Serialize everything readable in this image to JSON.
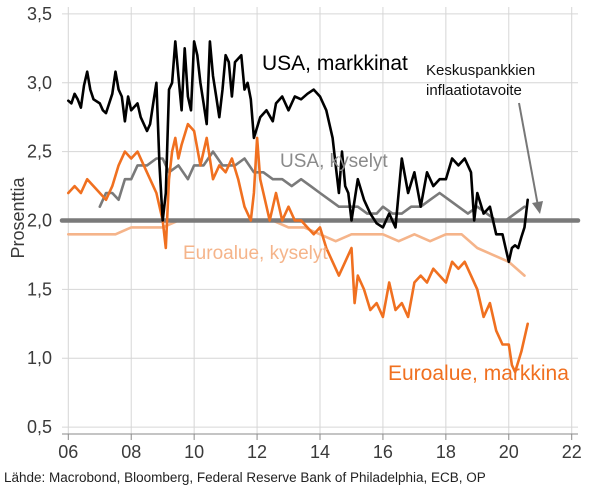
{
  "chart_data": {
    "type": "line",
    "ylabel": "Prosenttia",
    "xlim": [
      2005.8,
      2022.2
    ],
    "ylim": [
      0.45,
      3.55
    ],
    "yticks": [
      0.5,
      1.0,
      1.5,
      2.0,
      2.5,
      3.0,
      3.5
    ],
    "ytick_labels": [
      "0,5",
      "1,0",
      "1,5",
      "2,0",
      "2,5",
      "3,0",
      "3,5"
    ],
    "xticks": [
      2006,
      2008,
      2010,
      2012,
      2014,
      2016,
      2018,
      2020,
      2022
    ],
    "xtick_labels": [
      "06",
      "08",
      "10",
      "12",
      "14",
      "16",
      "18",
      "20",
      "22"
    ],
    "grid": true,
    "colors": {
      "usa_markets": "#000000",
      "usa_surveys": "#7a7a7a",
      "euro_markets": "#f07020",
      "euro_surveys": "#f5b48a",
      "target": "#7a7a7a"
    },
    "series": [
      {
        "name": "USA, markkinat",
        "x": [
          2006.0,
          2006.1,
          2006.2,
          2006.3,
          2006.4,
          2006.5,
          2006.6,
          2006.7,
          2006.8,
          2007.0,
          2007.1,
          2007.2,
          2007.4,
          2007.5,
          2007.6,
          2007.7,
          2007.8,
          2007.9,
          2008.0,
          2008.2,
          2008.3,
          2008.5,
          2008.6,
          2008.7,
          2008.8,
          2008.9,
          2009.0,
          2009.1,
          2009.2,
          2009.3,
          2009.4,
          2009.5,
          2009.6,
          2009.7,
          2009.8,
          2009.9,
          2010.0,
          2010.1,
          2010.2,
          2010.3,
          2010.4,
          2010.5,
          2010.6,
          2010.7,
          2010.8,
          2010.9,
          2011.0,
          2011.1,
          2011.2,
          2011.3,
          2011.5,
          2011.6,
          2011.7,
          2011.8,
          2011.9,
          2012.1,
          2012.3,
          2012.5,
          2012.6,
          2012.8,
          2013.0,
          2013.2,
          2013.4,
          2013.6,
          2013.8,
          2014.0,
          2014.2,
          2014.4,
          2014.5,
          2014.6,
          2014.7,
          2014.8,
          2014.9,
          2015.0,
          2015.2,
          2015.4,
          2015.6,
          2015.8,
          2016.0,
          2016.2,
          2016.4,
          2016.6,
          2016.8,
          2017.0,
          2017.2,
          2017.4,
          2017.6,
          2017.8,
          2018.0,
          2018.2,
          2018.4,
          2018.6,
          2018.8,
          2018.9,
          2019.0,
          2019.2,
          2019.4,
          2019.6,
          2019.8,
          2019.9,
          2020.0,
          2020.1,
          2020.2,
          2020.3,
          2020.4,
          2020.5,
          2020.6
        ],
        "values": [
          2.87,
          2.85,
          2.92,
          2.88,
          2.82,
          2.98,
          3.08,
          2.95,
          2.88,
          2.85,
          2.8,
          2.78,
          2.92,
          3.08,
          2.95,
          2.9,
          2.72,
          2.9,
          2.8,
          2.85,
          2.75,
          2.65,
          2.7,
          2.85,
          3.0,
          2.4,
          2.0,
          2.2,
          2.95,
          3.0,
          3.3,
          3.05,
          2.8,
          3.25,
          2.9,
          2.8,
          3.3,
          3.2,
          3.0,
          2.85,
          2.7,
          3.3,
          3.05,
          2.9,
          2.75,
          2.95,
          3.2,
          3.15,
          2.9,
          3.15,
          3.2,
          2.95,
          3.0,
          2.88,
          2.6,
          2.75,
          2.8,
          2.72,
          2.85,
          2.9,
          2.8,
          2.9,
          2.88,
          2.92,
          2.95,
          2.9,
          2.8,
          2.6,
          2.4,
          2.2,
          2.5,
          2.25,
          2.2,
          2.0,
          2.3,
          2.15,
          2.05,
          1.98,
          1.95,
          2.05,
          1.95,
          2.45,
          2.2,
          2.35,
          2.1,
          2.35,
          2.25,
          2.3,
          2.3,
          2.45,
          2.4,
          2.45,
          2.35,
          2.0,
          2.2,
          2.05,
          2.1,
          1.9,
          1.9,
          1.8,
          1.7,
          1.8,
          1.82,
          1.8,
          1.88,
          1.95,
          2.15
        ]
      },
      {
        "name": "USA, kyselyt",
        "x": [
          2007.0,
          2007.2,
          2007.4,
          2007.6,
          2007.8,
          2008.0,
          2008.2,
          2008.5,
          2008.8,
          2009.0,
          2009.2,
          2009.5,
          2009.8,
          2010.0,
          2010.3,
          2010.6,
          2010.9,
          2011.0,
          2011.3,
          2011.6,
          2011.9,
          2012.2,
          2012.5,
          2012.8,
          2013.1,
          2013.4,
          2013.7,
          2014.0,
          2014.3,
          2014.6,
          2014.9,
          2015.2,
          2015.5,
          2015.8,
          2016.0,
          2016.3,
          2016.6,
          2016.9,
          2017.2,
          2017.5,
          2017.8,
          2018.1,
          2018.4,
          2018.7,
          2019.0,
          2019.3,
          2019.6,
          2019.9,
          2020.2,
          2020.5
        ],
        "values": [
          2.1,
          2.2,
          2.2,
          2.15,
          2.3,
          2.3,
          2.4,
          2.4,
          2.45,
          2.45,
          2.35,
          2.4,
          2.3,
          2.4,
          2.4,
          2.5,
          2.4,
          2.4,
          2.4,
          2.45,
          2.35,
          2.35,
          2.3,
          2.3,
          2.25,
          2.3,
          2.25,
          2.2,
          2.15,
          2.1,
          2.1,
          2.1,
          2.05,
          2.05,
          2.1,
          2.05,
          2.05,
          2.1,
          2.1,
          2.15,
          2.2,
          2.15,
          2.1,
          2.05,
          2.1,
          2.05,
          2.0,
          2.0,
          2.05,
          2.1
        ]
      },
      {
        "name": "Euroalue, markkina",
        "x": [
          2006.0,
          2006.2,
          2006.4,
          2006.6,
          2006.8,
          2007.0,
          2007.2,
          2007.4,
          2007.6,
          2007.8,
          2008.0,
          2008.2,
          2008.4,
          2008.6,
          2008.8,
          2009.0,
          2009.1,
          2009.2,
          2009.3,
          2009.4,
          2009.5,
          2009.6,
          2009.8,
          2010.0,
          2010.2,
          2010.4,
          2010.6,
          2010.8,
          2011.0,
          2011.2,
          2011.4,
          2011.6,
          2011.8,
          2011.9,
          2012.0,
          2012.1,
          2012.2,
          2012.4,
          2012.6,
          2012.8,
          2013.0,
          2013.2,
          2013.4,
          2013.6,
          2013.8,
          2014.0,
          2014.2,
          2014.4,
          2014.6,
          2014.8,
          2015.0,
          2015.1,
          2015.2,
          2015.4,
          2015.6,
          2015.8,
          2016.0,
          2016.2,
          2016.4,
          2016.6,
          2016.8,
          2017.0,
          2017.2,
          2017.4,
          2017.6,
          2017.8,
          2018.0,
          2018.2,
          2018.4,
          2018.6,
          2018.8,
          2019.0,
          2019.2,
          2019.4,
          2019.6,
          2019.8,
          2020.0,
          2020.1,
          2020.2,
          2020.4,
          2020.6
        ],
        "values": [
          2.2,
          2.25,
          2.2,
          2.3,
          2.25,
          2.2,
          2.15,
          2.25,
          2.4,
          2.5,
          2.45,
          2.5,
          2.4,
          2.3,
          2.2,
          2.0,
          1.8,
          2.3,
          2.5,
          2.6,
          2.45,
          2.55,
          2.7,
          2.65,
          2.4,
          2.6,
          2.3,
          2.4,
          2.35,
          2.45,
          2.3,
          2.1,
          2.0,
          2.2,
          2.6,
          2.3,
          2.2,
          2.0,
          2.2,
          2.0,
          2.1,
          2.0,
          2.0,
          1.95,
          1.9,
          1.95,
          1.8,
          1.7,
          1.6,
          1.7,
          1.8,
          1.4,
          1.6,
          1.5,
          1.35,
          1.4,
          1.3,
          1.55,
          1.35,
          1.4,
          1.3,
          1.55,
          1.6,
          1.55,
          1.65,
          1.6,
          1.55,
          1.7,
          1.65,
          1.7,
          1.6,
          1.5,
          1.3,
          1.4,
          1.2,
          1.1,
          1.1,
          0.95,
          0.9,
          1.05,
          1.25
        ]
      },
      {
        "name": "Euroalue, kyselyt",
        "x": [
          2006.0,
          2006.5,
          2007.0,
          2007.5,
          2008.0,
          2008.5,
          2009.0,
          2009.5,
          2010.0,
          2010.5,
          2011.0,
          2011.5,
          2012.0,
          2012.5,
          2013.0,
          2013.5,
          2014.0,
          2014.5,
          2015.0,
          2015.5,
          2016.0,
          2016.5,
          2017.0,
          2017.5,
          2018.0,
          2018.5,
          2019.0,
          2019.5,
          2020.0,
          2020.5
        ],
        "values": [
          1.9,
          1.9,
          1.9,
          1.9,
          1.95,
          1.95,
          1.95,
          2.0,
          2.0,
          2.0,
          2.0,
          2.0,
          2.0,
          2.0,
          1.95,
          1.95,
          1.9,
          1.85,
          1.9,
          1.9,
          1.9,
          1.85,
          1.9,
          1.85,
          1.9,
          1.9,
          1.8,
          1.75,
          1.7,
          1.6
        ]
      },
      {
        "name": "Keskuspankkien inflaatiotavoite",
        "x": [
          2005.8,
          2022.2
        ],
        "values": [
          2.0,
          2.0
        ]
      }
    ],
    "annotations": {
      "usa_markets": "USA, markkinat",
      "usa_surveys": "USA, kyselyt",
      "euro_markets": "Euroalue, markkina",
      "euro_surveys": "Euroalue, kyselyt",
      "target_line1": "Keskuspankkien",
      "target_line2": "inflaatiotavoite"
    }
  },
  "source": "Lähde: Macrobond, Bloomberg, Federal Reserve Bank of Philadelphia, ECB, OP"
}
